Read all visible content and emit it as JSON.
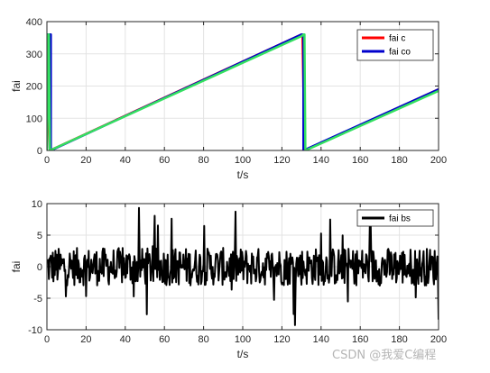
{
  "chart_data": [
    {
      "type": "line",
      "xlabel": "t/s",
      "ylabel": "fai",
      "xlim": [
        0,
        200
      ],
      "ylim": [
        0,
        400
      ],
      "xticks": [
        "0",
        "20",
        "40",
        "60",
        "80",
        "100",
        "120",
        "140",
        "160",
        "180",
        "200"
      ],
      "yticks": [
        "0",
        "100",
        "200",
        "300",
        "400"
      ],
      "grid": true,
      "legend_position": "top-right",
      "series": [
        {
          "name": "fai c",
          "color": "#ff0000",
          "x": [
            0,
            0,
            1.5,
            130,
            130.5,
            131.5,
            200
          ],
          "y": [
            5,
            360,
            0,
            360,
            360,
            0,
            190
          ]
        },
        {
          "name": "fai co",
          "color": "#0000cd",
          "x": [
            0,
            0,
            1.2,
            1.5,
            2,
            2,
            130,
            130.5,
            131,
            131,
            200
          ],
          "y": [
            5,
            360,
            360,
            360,
            360,
            0,
            360,
            360,
            360,
            0,
            190
          ]
        },
        {
          "color": "#33e060",
          "x": [
            0,
            0,
            0.8,
            1,
            1.5,
            130,
            131,
            131.5,
            132,
            200
          ],
          "y": [
            360,
            0,
            360,
            360,
            0,
            355,
            360,
            360,
            0,
            185
          ]
        }
      ]
    },
    {
      "type": "line",
      "xlabel": "t/s",
      "ylabel": "fai",
      "xlim": [
        0,
        200
      ],
      "ylim": [
        -10,
        10
      ],
      "xticks": [
        "0",
        "20",
        "40",
        "60",
        "80",
        "100",
        "120",
        "140",
        "160",
        "180",
        "200"
      ],
      "yticks": [
        "-10",
        "-5",
        "0",
        "5",
        "10"
      ],
      "grid": true,
      "legend_position": "top-right",
      "series": [
        {
          "name": "fai bs",
          "color": "#000000",
          "noise_amplitude_typical": 3,
          "noise_amplitude_peak": 9.5,
          "samples": 600
        }
      ]
    }
  ],
  "watermark": "CSDN @我爱C编程"
}
